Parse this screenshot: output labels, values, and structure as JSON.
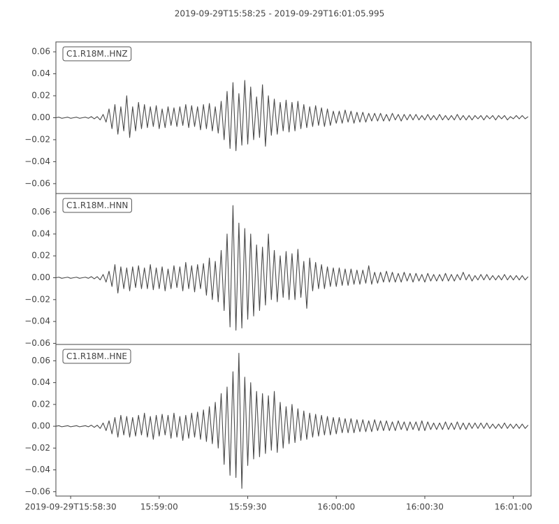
{
  "title": "2019-09-29T15:58:25  -  2019-09-29T16:01:05.995",
  "chart_data": [
    {
      "type": "line",
      "xlim": [
        0,
        160.995
      ],
      "ylim": [
        -0.069,
        0.069
      ],
      "yticks": [
        {
          "value": -0.06,
          "label": "−0.06"
        },
        {
          "value": -0.04,
          "label": "−0.04"
        },
        {
          "value": -0.02,
          "label": "−0.02"
        },
        {
          "value": 0,
          "label": "0.00"
        },
        0.02,
        0.04,
        0.06
      ],
      "x": [
        0,
        1,
        2,
        3,
        4,
        5,
        6,
        7,
        8,
        9,
        10,
        11,
        12,
        13,
        14,
        15,
        16,
        17,
        18,
        19,
        20,
        21,
        22,
        23,
        24,
        25,
        26,
        27,
        28,
        29,
        30,
        31,
        32,
        33,
        34,
        35,
        36,
        37,
        38,
        39,
        40,
        41,
        42,
        43,
        44,
        45,
        46,
        47,
        48,
        49,
        50,
        51,
        52,
        53,
        54,
        55,
        56,
        57,
        58,
        59,
        60,
        61,
        62,
        63,
        64,
        65,
        66,
        67,
        68,
        69,
        70,
        71,
        72,
        73,
        74,
        75,
        76,
        77,
        78,
        79,
        80,
        81,
        82,
        83,
        84,
        85,
        86,
        87,
        88,
        89,
        90,
        91,
        92,
        93,
        94,
        95,
        96,
        97,
        98,
        99,
        100,
        101,
        102,
        103,
        104,
        105,
        106,
        107,
        108,
        109,
        110,
        111,
        112,
        113,
        114,
        115,
        116,
        117,
        118,
        119,
        120,
        121,
        122,
        123,
        124,
        125,
        126,
        127,
        128,
        129,
        130,
        131,
        132,
        133,
        134,
        135,
        136,
        137,
        138,
        139,
        140,
        141,
        142,
        143,
        144,
        145,
        146,
        147,
        148,
        149,
        150,
        151,
        152,
        153,
        154,
        155,
        156,
        157,
        158,
        159,
        160
      ],
      "series": [
        {
          "name": "C1.R18M..HNZ",
          "color": "#4a4a4a",
          "values": [
            0,
            0.0005,
            -0.0005,
            0,
            0.0005,
            -0.0005,
            0,
            0.0005,
            -0.0005,
            0,
            0.0005,
            -0.0005,
            0.001,
            -0.001,
            0.001,
            -0.002,
            0.003,
            -0.004,
            0.008,
            -0.01,
            0.012,
            -0.015,
            0.01,
            -0.012,
            0.02,
            -0.018,
            0.01,
            -0.012,
            0.014,
            -0.01,
            0.012,
            -0.009,
            0.01,
            -0.008,
            0.011,
            -0.01,
            0.008,
            -0.009,
            0.01,
            -0.007,
            0.009,
            -0.008,
            0.01,
            -0.007,
            0.012,
            -0.009,
            0.011,
            -0.008,
            0.01,
            -0.011,
            0.012,
            -0.01,
            0.013,
            -0.012,
            0.01,
            -0.014,
            0.015,
            -0.02,
            0.024,
            -0.028,
            0.032,
            -0.03,
            0.022,
            -0.025,
            0.034,
            -0.024,
            0.028,
            -0.02,
            0.019,
            -0.018,
            0.03,
            -0.026,
            0.02,
            -0.016,
            0.017,
            -0.015,
            0.014,
            -0.012,
            0.016,
            -0.013,
            0.014,
            -0.012,
            0.015,
            -0.01,
            0.012,
            -0.009,
            0.01,
            -0.008,
            0.011,
            -0.007,
            0.009,
            -0.008,
            0.008,
            -0.007,
            0.006,
            -0.005,
            0.006,
            -0.005,
            0.007,
            -0.004,
            0.006,
            -0.005,
            0.005,
            -0.004,
            0.005,
            -0.004,
            0.004,
            -0.003,
            0.004,
            -0.003,
            0.004,
            -0.003,
            0.003,
            -0.003,
            0.004,
            -0.002,
            0.003,
            -0.003,
            0.003,
            -0.002,
            0.003,
            -0.002,
            0.003,
            -0.002,
            0.002,
            -0.002,
            0.003,
            -0.002,
            0.002,
            -0.002,
            0.003,
            -0.002,
            0.002,
            -0.002,
            0.002,
            -0.002,
            0.003,
            -0.002,
            0.002,
            -0.002,
            0.002,
            -0.002,
            0.002,
            -0.001,
            0.002,
            -0.002,
            0.002,
            -0.001,
            0.002,
            -0.002,
            0.002,
            -0.001,
            0.002,
            -0.002,
            0.001,
            -0.001,
            0.002,
            -0.001,
            0.002,
            -0.001,
            0.001
          ]
        }
      ]
    },
    {
      "type": "line",
      "xlim": [
        0,
        160.995
      ],
      "ylim": [
        -0.061,
        0.077
      ],
      "yticks": [
        {
          "value": -0.06,
          "label": "−0.06"
        },
        {
          "value": -0.04,
          "label": "−0.04"
        },
        {
          "value": -0.02,
          "label": "−0.02"
        },
        {
          "value": 0,
          "label": "0.00"
        },
        0.02,
        0.04,
        0.06
      ],
      "x": [
        0,
        1,
        2,
        3,
        4,
        5,
        6,
        7,
        8,
        9,
        10,
        11,
        12,
        13,
        14,
        15,
        16,
        17,
        18,
        19,
        20,
        21,
        22,
        23,
        24,
        25,
        26,
        27,
        28,
        29,
        30,
        31,
        32,
        33,
        34,
        35,
        36,
        37,
        38,
        39,
        40,
        41,
        42,
        43,
        44,
        45,
        46,
        47,
        48,
        49,
        50,
        51,
        52,
        53,
        54,
        55,
        56,
        57,
        58,
        59,
        60,
        61,
        62,
        63,
        64,
        65,
        66,
        67,
        68,
        69,
        70,
        71,
        72,
        73,
        74,
        75,
        76,
        77,
        78,
        79,
        80,
        81,
        82,
        83,
        84,
        85,
        86,
        87,
        88,
        89,
        90,
        91,
        92,
        93,
        94,
        95,
        96,
        97,
        98,
        99,
        100,
        101,
        102,
        103,
        104,
        105,
        106,
        107,
        108,
        109,
        110,
        111,
        112,
        113,
        114,
        115,
        116,
        117,
        118,
        119,
        120,
        121,
        122,
        123,
        124,
        125,
        126,
        127,
        128,
        129,
        130,
        131,
        132,
        133,
        134,
        135,
        136,
        137,
        138,
        139,
        140,
        141,
        142,
        143,
        144,
        145,
        146,
        147,
        148,
        149,
        150,
        151,
        152,
        153,
        154,
        155,
        156,
        157,
        158,
        159,
        160
      ],
      "series": [
        {
          "name": "C1.R18M..HNN",
          "color": "#4a4a4a",
          "values": [
            0,
            0.0005,
            -0.0005,
            0,
            0.0005,
            -0.0005,
            0,
            0.0005,
            -0.0005,
            0,
            0.0005,
            -0.0005,
            0.001,
            -0.001,
            0.001,
            -0.002,
            0.003,
            -0.004,
            0.006,
            -0.008,
            0.012,
            -0.014,
            0.01,
            -0.01,
            0.009,
            -0.012,
            0.01,
            -0.009,
            0.011,
            -0.01,
            0.009,
            -0.01,
            0.012,
            -0.011,
            0.009,
            -0.01,
            0.01,
            -0.012,
            0.008,
            -0.01,
            0.011,
            -0.009,
            0.01,
            -0.012,
            0.014,
            -0.01,
            0.011,
            -0.013,
            0.012,
            -0.01,
            0.013,
            -0.016,
            0.018,
            -0.02,
            0.015,
            -0.022,
            0.025,
            -0.03,
            0.04,
            -0.045,
            0.066,
            -0.048,
            0.05,
            -0.046,
            0.045,
            -0.038,
            0.04,
            -0.035,
            0.03,
            -0.03,
            0.028,
            -0.025,
            0.04,
            -0.02,
            0.025,
            -0.022,
            0.02,
            -0.018,
            0.024,
            -0.02,
            0.022,
            -0.02,
            0.026,
            -0.018,
            0.015,
            -0.028,
            0.018,
            -0.012,
            0.014,
            -0.01,
            0.012,
            -0.01,
            0.01,
            -0.008,
            0.009,
            -0.008,
            0.009,
            -0.007,
            0.008,
            -0.007,
            0.008,
            -0.006,
            0.007,
            -0.006,
            0.007,
            -0.005,
            0.011,
            -0.006,
            0.005,
            -0.005,
            0.005,
            -0.004,
            0.006,
            -0.004,
            0.005,
            -0.004,
            0.004,
            -0.004,
            0.005,
            -0.003,
            0.004,
            -0.004,
            0.004,
            -0.003,
            0.003,
            -0.004,
            0.004,
            -0.003,
            0.003,
            -0.003,
            0.003,
            -0.003,
            0.004,
            -0.003,
            0.003,
            -0.003,
            0.003,
            -0.002,
            0.005,
            -0.002,
            0.003,
            -0.003,
            0.002,
            -0.002,
            0.003,
            -0.002,
            0.003,
            -0.002,
            0.002,
            -0.002,
            0.002,
            -0.002,
            0.003,
            -0.002,
            0.002,
            -0.002,
            0.002,
            -0.002,
            0.002,
            -0.002,
            0.001
          ]
        }
      ]
    },
    {
      "type": "line",
      "xlim": [
        0,
        160.995
      ],
      "ylim": [
        -0.064,
        0.075
      ],
      "yticks": [
        {
          "value": -0.06,
          "label": "−0.06"
        },
        {
          "value": -0.04,
          "label": "−0.04"
        },
        {
          "value": -0.02,
          "label": "−0.02"
        },
        {
          "value": 0,
          "label": "0.00"
        },
        0.02,
        0.04,
        0.06
      ],
      "xticks": [
        {
          "value": 5,
          "label": "2019-09-29T15:58:30"
        },
        {
          "value": 35,
          "label": "15:59:00"
        },
        {
          "value": 65,
          "label": "15:59:30"
        },
        {
          "value": 95,
          "label": "16:00:00"
        },
        {
          "value": 125,
          "label": "16:00:30"
        },
        {
          "value": 155,
          "label": "16:01:00"
        }
      ],
      "x": [
        0,
        1,
        2,
        3,
        4,
        5,
        6,
        7,
        8,
        9,
        10,
        11,
        12,
        13,
        14,
        15,
        16,
        17,
        18,
        19,
        20,
        21,
        22,
        23,
        24,
        25,
        26,
        27,
        28,
        29,
        30,
        31,
        32,
        33,
        34,
        35,
        36,
        37,
        38,
        39,
        40,
        41,
        42,
        43,
        44,
        45,
        46,
        47,
        48,
        49,
        50,
        51,
        52,
        53,
        54,
        55,
        56,
        57,
        58,
        59,
        60,
        61,
        62,
        63,
        64,
        65,
        66,
        67,
        68,
        69,
        70,
        71,
        72,
        73,
        74,
        75,
        76,
        77,
        78,
        79,
        80,
        81,
        82,
        83,
        84,
        85,
        86,
        87,
        88,
        89,
        90,
        91,
        92,
        93,
        94,
        95,
        96,
        97,
        98,
        99,
        100,
        101,
        102,
        103,
        104,
        105,
        106,
        107,
        108,
        109,
        110,
        111,
        112,
        113,
        114,
        115,
        116,
        117,
        118,
        119,
        120,
        121,
        122,
        123,
        124,
        125,
        126,
        127,
        128,
        129,
        130,
        131,
        132,
        133,
        134,
        135,
        136,
        137,
        138,
        139,
        140,
        141,
        142,
        143,
        144,
        145,
        146,
        147,
        148,
        149,
        150,
        151,
        152,
        153,
        154,
        155,
        156,
        157,
        158,
        159,
        160
      ],
      "series": [
        {
          "name": "C1.R18M..HNE",
          "color": "#4a4a4a",
          "values": [
            0,
            0.0005,
            -0.0005,
            0,
            0.0005,
            -0.0005,
            0,
            0.0005,
            -0.0005,
            0,
            0.0005,
            -0.0005,
            0.001,
            -0.001,
            0.001,
            -0.002,
            0.003,
            -0.004,
            0.005,
            -0.007,
            0.008,
            -0.01,
            0.01,
            -0.008,
            0.009,
            -0.01,
            0.008,
            -0.009,
            0.01,
            -0.008,
            0.012,
            -0.01,
            0.009,
            -0.012,
            0.01,
            -0.009,
            0.011,
            -0.008,
            0.01,
            -0.011,
            0.012,
            -0.01,
            0.009,
            -0.013,
            0.01,
            -0.011,
            0.012,
            -0.01,
            0.013,
            -0.012,
            0.015,
            -0.014,
            0.018,
            -0.016,
            0.022,
            -0.02,
            0.03,
            -0.035,
            0.036,
            -0.045,
            0.05,
            -0.047,
            0.067,
            -0.057,
            0.045,
            -0.036,
            0.04,
            -0.03,
            0.032,
            -0.028,
            0.03,
            -0.025,
            0.028,
            -0.022,
            0.032,
            -0.024,
            0.022,
            -0.02,
            0.018,
            -0.016,
            0.02,
            -0.015,
            0.016,
            -0.013,
            0.014,
            -0.012,
            0.012,
            -0.01,
            0.011,
            -0.009,
            0.01,
            -0.008,
            0.009,
            -0.008,
            0.008,
            -0.007,
            0.008,
            -0.006,
            0.007,
            -0.006,
            0.007,
            -0.006,
            0.006,
            -0.005,
            0.006,
            -0.005,
            0.005,
            -0.005,
            0.006,
            -0.004,
            0.005,
            -0.004,
            0.005,
            -0.004,
            0.004,
            -0.004,
            0.005,
            -0.003,
            0.004,
            -0.004,
            0.004,
            -0.003,
            0.004,
            -0.004,
            0.005,
            -0.004,
            0.004,
            -0.003,
            0.003,
            -0.003,
            0.003,
            -0.003,
            0.004,
            -0.003,
            0.003,
            -0.003,
            0.004,
            -0.003,
            0.003,
            -0.003,
            0.003,
            -0.002,
            0.003,
            -0.002,
            0.003,
            -0.002,
            0.003,
            -0.002,
            0.002,
            -0.002,
            0.002,
            -0.002,
            0.003,
            -0.002,
            0.002,
            -0.002,
            0.002,
            -0.002,
            0.002,
            -0.002,
            0.001
          ]
        }
      ]
    }
  ]
}
